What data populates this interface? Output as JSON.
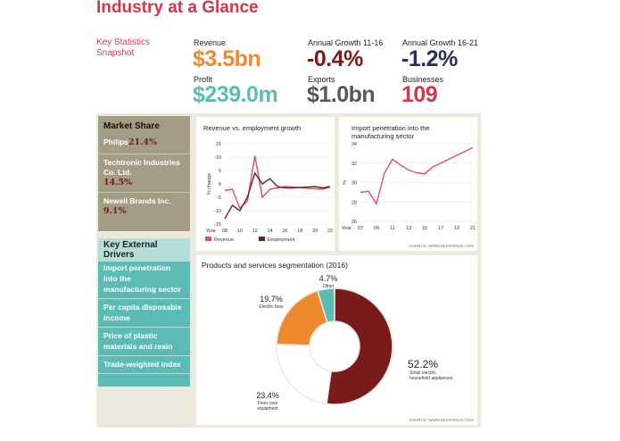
{
  "header": {
    "title": "Industry at a Glance",
    "snapshot": "Key Statistics Snapshot"
  },
  "stats": [
    {
      "label": "Revenue",
      "value": "$3.5bn",
      "color": "#f0892e"
    },
    {
      "label": "Annual Growth 11-16",
      "value": "-0.4%",
      "color": "#7a1b1b"
    },
    {
      "label": "Annual Growth 16-21",
      "value": "-1.2%",
      "color": "#26305a"
    },
    {
      "label": "Profit",
      "value": "$239.0m",
      "color": "#5bbcb6"
    },
    {
      "label": "Exports",
      "value": "$1.0bn",
      "color": "#585858"
    },
    {
      "label": "Businesses",
      "value": "109",
      "color": "#d3364d"
    }
  ],
  "market_share": {
    "title": "Market Share",
    "items": [
      {
        "name": "Philips",
        "pct": "21.4%"
      },
      {
        "name": "Techtronic Industries Co. Ltd.",
        "pct": "14.5%"
      },
      {
        "name": "Newell Brands Inc.",
        "pct": "9.1%"
      }
    ]
  },
  "drivers": {
    "title": "Key External Drivers",
    "items": [
      "Import penetration into the manufacturing sector",
      "Per capita disposable income",
      "Price of plastic materials and resin",
      "Trade-weighted index"
    ]
  },
  "chart_data": [
    {
      "type": "line",
      "title": "Revenue vs. employment growth",
      "ylabel": "% change",
      "xlabel": "Year",
      "x": [
        8,
        9,
        10,
        11,
        12,
        13,
        14,
        15,
        16,
        17,
        18,
        19,
        20,
        21,
        22
      ],
      "x_ticks": [
        "08",
        "10",
        "12",
        "14",
        "16",
        "18",
        "20",
        "22"
      ],
      "y_ticks": [
        15,
        10,
        5,
        0,
        -5,
        -10,
        -15
      ],
      "ylim": [
        -15,
        15
      ],
      "series": [
        {
          "name": "Revenue",
          "color": "#e64b5f",
          "values": [
            -2.5,
            -2.0,
            -9.0,
            -6.5,
            10.5,
            -5.0,
            -2.0,
            -1.5,
            -1.0,
            -1.2,
            -1.4,
            -1.6,
            -1.8,
            -2.0,
            -1.2
          ]
        },
        {
          "name": "Employment",
          "color": "#7a1b1b",
          "values": [
            -13.0,
            -8.0,
            -10.0,
            -5.0,
            4.0,
            0.0,
            2.0,
            -1.0,
            -1.5,
            -1.5,
            -1.3,
            -1.2,
            -1.0,
            -1.5,
            -1.0
          ]
        }
      ],
      "source": "SOURCE: WWW.IBISWORLD.COM"
    },
    {
      "type": "line",
      "title": "Import penetration into the manufacturing sector",
      "ylabel": "%",
      "xlabel": "Year",
      "x": [
        7,
        8,
        9,
        10,
        11,
        12,
        13,
        14,
        15,
        16,
        17,
        18,
        19,
        20,
        21
      ],
      "x_ticks": [
        "07",
        "09",
        "11",
        "13",
        "15",
        "17",
        "19",
        "21"
      ],
      "y_ticks": [
        34,
        32,
        30,
        28,
        26
      ],
      "ylim": [
        26,
        34
      ],
      "series": [
        {
          "name": "Import penetration",
          "color": "#e64b5f",
          "values": [
            29.0,
            29.1,
            27.8,
            31.0,
            32.4,
            31.8,
            31.3,
            31.0,
            30.9,
            31.6,
            32.0,
            32.4,
            32.8,
            33.2,
            33.6
          ]
        }
      ]
    },
    {
      "type": "pie",
      "title": "Products and services segmentation (2016)",
      "slices": [
        {
          "label": "Small electric household appliances",
          "value": 52.2,
          "display": "52.2%",
          "color": "#7a1b1b"
        },
        {
          "label": "Floor care equipment",
          "value": 23.4,
          "display": "23.4%",
          "color": "#ffffff"
        },
        {
          "label": "Electric fans",
          "value": 19.7,
          "display": "19.7%",
          "color": "#f0892e"
        },
        {
          "label": "Other",
          "value": 4.7,
          "display": "4.7%",
          "color": "#5bbcb6"
        }
      ],
      "source": "SOURCE: WWW.IBISWORLD.COM"
    }
  ]
}
